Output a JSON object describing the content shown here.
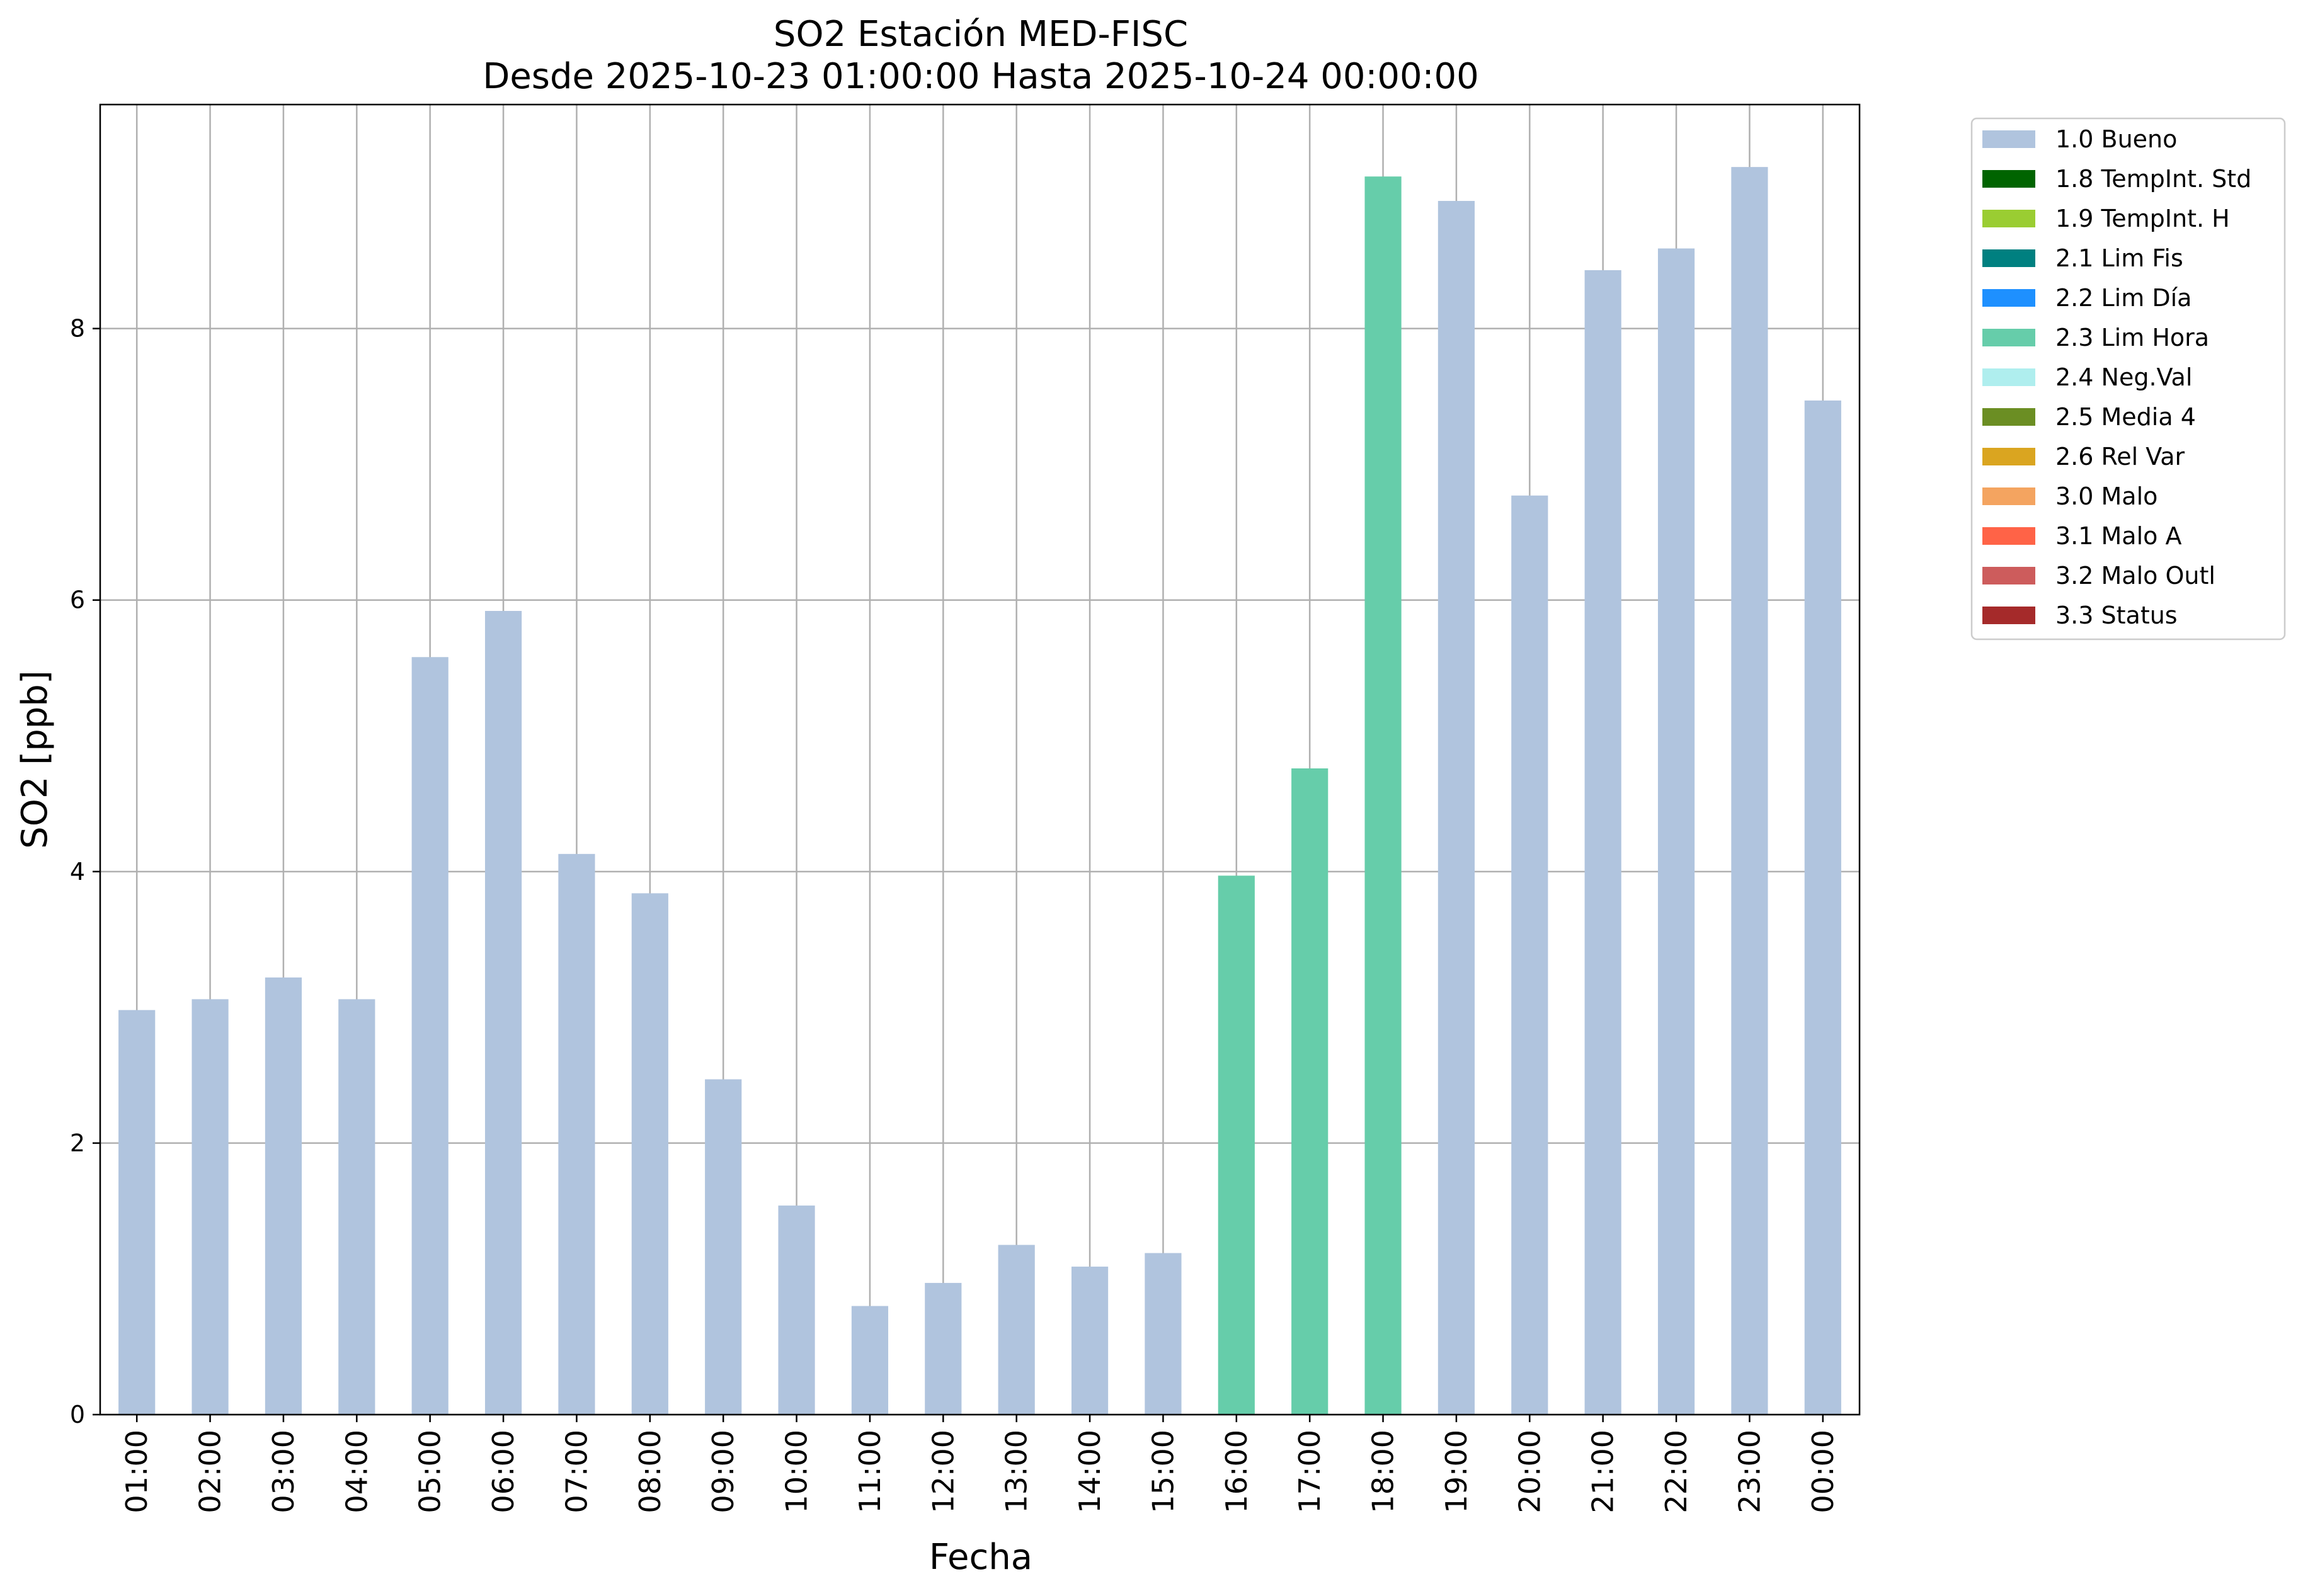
{
  "chart_data": {
    "type": "bar",
    "title": "SO2 Estación MED-FISC",
    "subtitle": "Desde 2025-10-23 01:00:00 Hasta 2025-10-24 00:00:00",
    "xlabel": "Fecha",
    "ylabel": "SO2 [ppb]",
    "ylim": [
      0,
      9.65
    ],
    "yticks": [
      0,
      2,
      4,
      6,
      8
    ],
    "grid": true,
    "legend_position": "outside-top-right",
    "categories": [
      "01:00",
      "02:00",
      "03:00",
      "04:00",
      "05:00",
      "06:00",
      "07:00",
      "08:00",
      "09:00",
      "10:00",
      "11:00",
      "12:00",
      "13:00",
      "14:00",
      "15:00",
      "16:00",
      "17:00",
      "18:00",
      "19:00",
      "20:00",
      "21:00",
      "22:00",
      "23:00",
      "00:00"
    ],
    "values": [
      2.98,
      3.06,
      3.22,
      3.06,
      5.58,
      5.92,
      4.13,
      3.84,
      2.47,
      1.54,
      0.8,
      0.97,
      1.25,
      1.09,
      1.19,
      3.97,
      4.76,
      9.12,
      8.94,
      6.77,
      8.43,
      8.59,
      9.19,
      7.47
    ],
    "value_flags": [
      "1.0 Bueno",
      "1.0 Bueno",
      "1.0 Bueno",
      "1.0 Bueno",
      "1.0 Bueno",
      "1.0 Bueno",
      "1.0 Bueno",
      "1.0 Bueno",
      "1.0 Bueno",
      "1.0 Bueno",
      "1.0 Bueno",
      "1.0 Bueno",
      "1.0 Bueno",
      "1.0 Bueno",
      "1.0 Bueno",
      "2.3 Lim Hora",
      "2.3 Lim Hora",
      "2.3 Lim Hora",
      "1.0 Bueno",
      "1.0 Bueno",
      "1.0 Bueno",
      "1.0 Bueno",
      "1.0 Bueno",
      "1.0 Bueno"
    ],
    "legend": [
      {
        "label": "1.0 Bueno",
        "color": "#b0c4de"
      },
      {
        "label": "1.8 TempInt. Std",
        "color": "#006400"
      },
      {
        "label": "1.9 TempInt. H",
        "color": "#9acd32"
      },
      {
        "label": "2.1 Lim Fis",
        "color": "#008080"
      },
      {
        "label": "2.2 Lim Día",
        "color": "#1e90ff"
      },
      {
        "label": "2.3 Lim Hora",
        "color": "#66cdaa"
      },
      {
        "label": "2.4 Neg.Val",
        "color": "#afeeee"
      },
      {
        "label": "2.5 Media 4",
        "color": "#6b8e23"
      },
      {
        "label": "2.6 Rel Var",
        "color": "#daa520"
      },
      {
        "label": "3.0 Malo",
        "color": "#f4a460"
      },
      {
        "label": "3.1 Malo A",
        "color": "#ff6347"
      },
      {
        "label": "3.2 Malo Outl",
        "color": "#cd5c5c"
      },
      {
        "label": "3.3 Status",
        "color": "#a52a2a"
      }
    ]
  }
}
